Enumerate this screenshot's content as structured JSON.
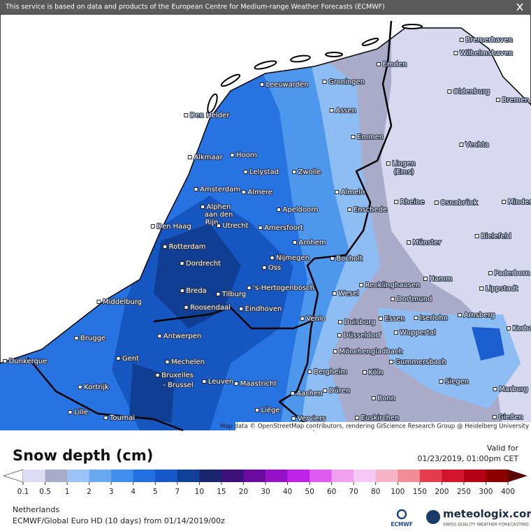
{
  "header": {
    "notice": "This service is based on data and products of the European Centre for Medium-range Weather Forecasts (ECMWF)"
  },
  "map": {
    "cities": [
      "Bremerhaven",
      "Wilhelmshaven",
      "Emden",
      "Leeuwarden",
      "Groningen",
      "Oldenburg",
      "Bremen",
      "Den Helder",
      "Assen",
      "Emmen",
      "Vechta",
      "Alkmaar",
      "Hoorn",
      "Lingen",
      "(Ems)",
      "Lelystad",
      "Zwolle",
      "Amsterdam",
      "Almere",
      "Almelo",
      "Rheine",
      "Osnabrück",
      "Minden",
      "Apeldoorn",
      "Enschede",
      "Alphen",
      "aan den",
      "Rijn",
      "Den Haag",
      "Utrecht",
      "Amersfoort",
      "Bielefeld",
      "Münster",
      "Arnhem",
      "Rotterdam",
      "Nijmegen",
      "Bocholt",
      "Dordrecht",
      "Oss",
      "Paderborn",
      "Hamm",
      "Recklinghausen",
      "'s-Hertogenbosch",
      "Lippstadt",
      "Breda",
      "Tilburg",
      "Wesel",
      "Dortmund",
      "Middelburg",
      "Roosendaal",
      "Eindhoven",
      "Arnsberg",
      "Korba",
      "Venlo",
      "Essen",
      "Iserlohn",
      "Duisburg",
      "Wuppertal",
      "Antwerpen",
      "Brugge",
      "Düsseldorf",
      "Mönchengladbach",
      "Dunkerque",
      "Gent",
      "Mechelen",
      "Gummersbach",
      "Bergheim",
      "Köln",
      "Bruxelles",
      "- Brussel",
      "Leuven",
      "Maastricht",
      "Siegen",
      "Marburg",
      "Kortrijk",
      "Düren",
      "Aachen",
      "Bonn",
      "Lille",
      "Liège",
      "Tournai",
      "Euskirchen",
      "Verviers",
      "Gießen"
    ],
    "attribution": "Map data © OpenStreetMap contributors, rendering GIScience Research Group @ Heidelberg University"
  },
  "legend": {
    "title": "Snow depth (cm)",
    "valid_label": "Valid for",
    "valid_time": "01/23/2019, 01:00pm CET",
    "labels": [
      "0.1",
      "0.5",
      "1",
      "2",
      "3",
      "4",
      "5",
      "7",
      "10",
      "15",
      "20",
      "30",
      "40",
      "50",
      "60",
      "70",
      "80",
      "100",
      "150",
      "200",
      "250",
      "300",
      "400"
    ],
    "colors": [
      "#dcdcf5",
      "#aaabc9",
      "#9cc3f5",
      "#6aa8f0",
      "#3f8eeb",
      "#2070e0",
      "#1657c8",
      "#0f3f96",
      "#1c2570",
      "#3c1078",
      "#6a0aa0",
      "#9612c8",
      "#be22e6",
      "#e05af0",
      "#eea0f0",
      "#f5c8f5",
      "#f5b4c8",
      "#f08c96",
      "#e63c50",
      "#d2142d",
      "#b40014",
      "#8c0000"
    ],
    "under_color": "#ffffff",
    "over_color": "#5a0000"
  },
  "footer": {
    "region": "Netherlands",
    "model": "ECMWF/Global Euro HD (10 days) from 01/14/2019/00z",
    "ecmwf_logo": "ECMWF",
    "brand": "meteologix.com",
    "tagline": "SWISS QUALITY WEATHER FORECASTING"
  }
}
